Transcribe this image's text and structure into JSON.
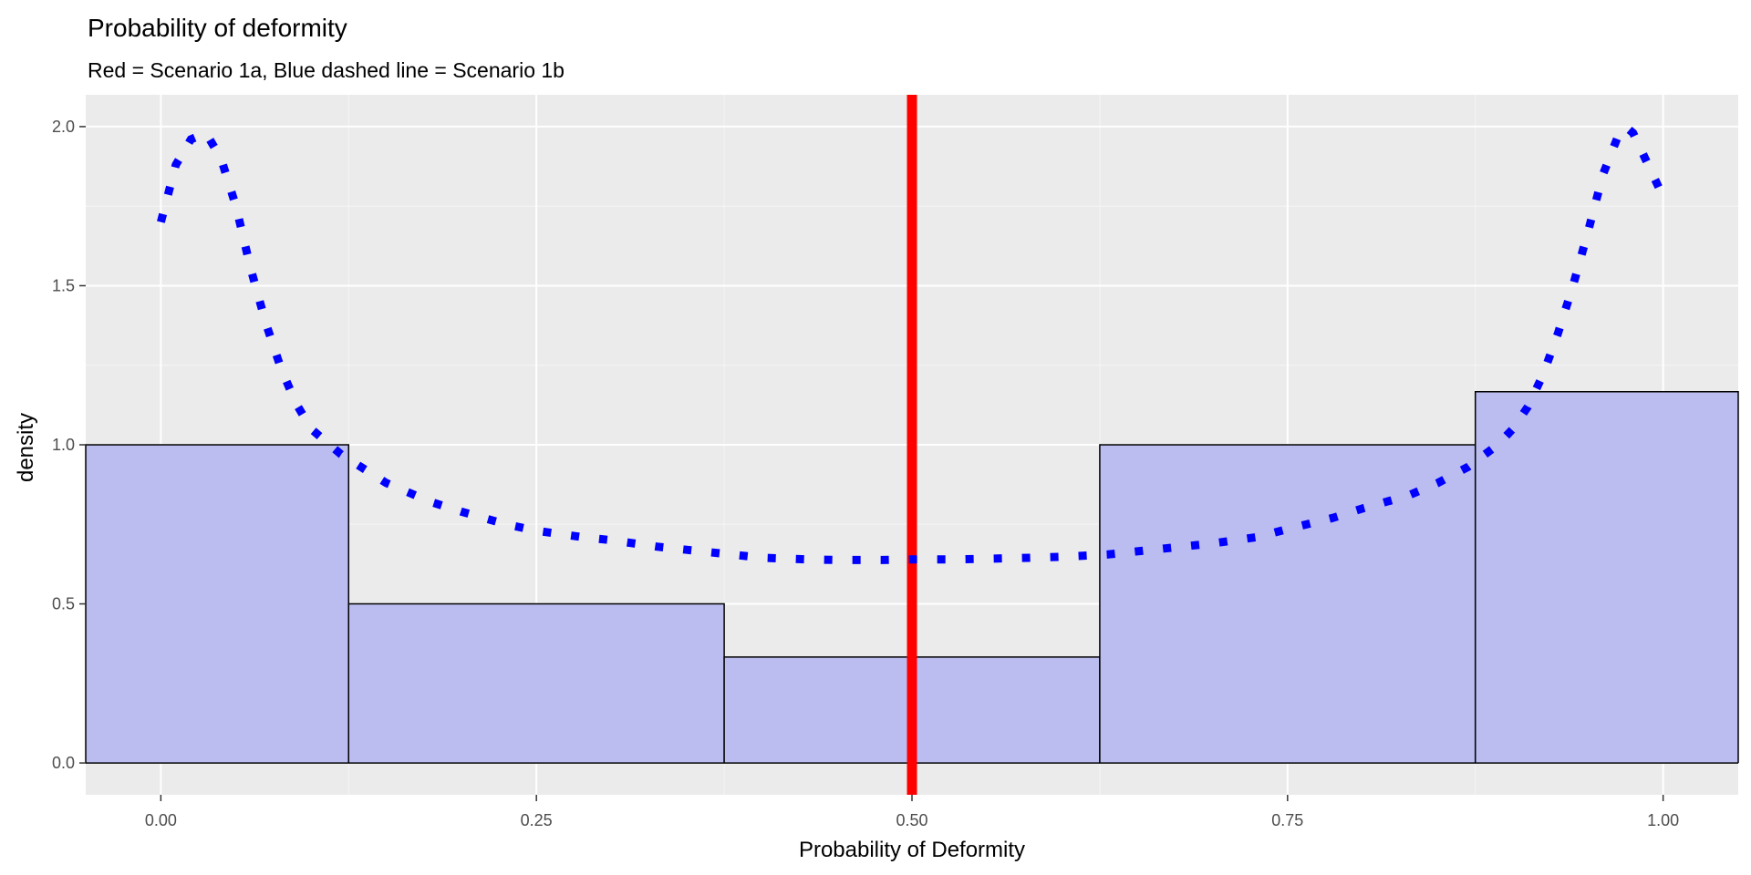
{
  "chart_data": {
    "type": "histogram",
    "title": "Probability of deformity",
    "subtitle": "Red = Scenario 1a, Blue dashed line  = Scenario 1b",
    "xlabel": "Probability of Deformity",
    "ylabel": "density",
    "xlim": [
      -0.05,
      1.05
    ],
    "ylim": [
      -0.1,
      2.1
    ],
    "x_ticks": [
      "0.00",
      "0.25",
      "0.50",
      "0.75",
      "1.00"
    ],
    "y_ticks": [
      "0.0",
      "0.5",
      "1.0",
      "1.5",
      "2.0"
    ],
    "grid": true,
    "histogram": {
      "bins": [
        {
          "x0": -0.125,
          "x1": 0.125,
          "density": 1.0
        },
        {
          "x0": 0.125,
          "x1": 0.375,
          "density": 0.5
        },
        {
          "x0": 0.375,
          "x1": 0.625,
          "density": 0.333
        },
        {
          "x0": 0.625,
          "x1": 0.875,
          "density": 1.0
        },
        {
          "x0": 0.875,
          "x1": 1.125,
          "density": 1.167
        }
      ],
      "fill": "#bbbdf0",
      "stroke": "#000000"
    },
    "vline": {
      "x": 0.5,
      "color": "#ff0000"
    },
    "density_curve": {
      "color": "#0000ff",
      "x": [
        0.0,
        0.01,
        0.02,
        0.03,
        0.04,
        0.05,
        0.06,
        0.07,
        0.08,
        0.09,
        0.1,
        0.12,
        0.15,
        0.18,
        0.2,
        0.23,
        0.25,
        0.28,
        0.3,
        0.33,
        0.35,
        0.38,
        0.4,
        0.43,
        0.45,
        0.48,
        0.5,
        0.53,
        0.55,
        0.58,
        0.6,
        0.63,
        0.65,
        0.68,
        0.7,
        0.73,
        0.75,
        0.78,
        0.8,
        0.83,
        0.85,
        0.87,
        0.89,
        0.9,
        0.91,
        0.92,
        0.93,
        0.94,
        0.95,
        0.96,
        0.97,
        0.975,
        0.98,
        0.99,
        1.0
      ],
      "y": [
        1.7,
        1.88,
        1.96,
        1.98,
        1.9,
        1.75,
        1.55,
        1.38,
        1.24,
        1.13,
        1.05,
        0.97,
        0.88,
        0.82,
        0.79,
        0.75,
        0.73,
        0.71,
        0.7,
        0.68,
        0.67,
        0.655,
        0.645,
        0.64,
        0.638,
        0.638,
        0.64,
        0.64,
        0.642,
        0.645,
        0.648,
        0.655,
        0.665,
        0.68,
        0.69,
        0.71,
        0.735,
        0.77,
        0.8,
        0.84,
        0.88,
        0.93,
        1.0,
        1.05,
        1.12,
        1.22,
        1.35,
        1.5,
        1.67,
        1.85,
        1.97,
        2.0,
        1.98,
        1.88,
        1.78
      ]
    }
  }
}
